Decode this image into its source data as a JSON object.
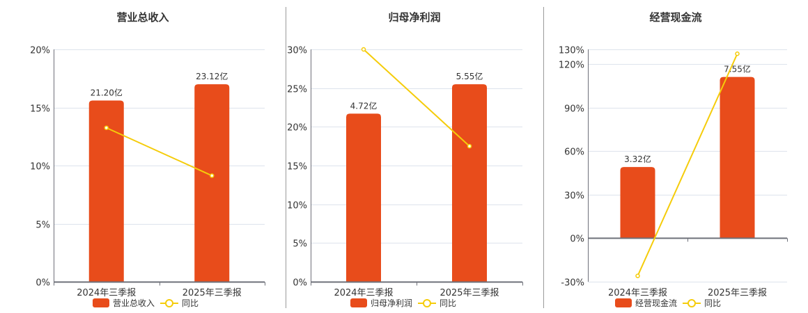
{
  "colors": {
    "bar": "#E84C1B",
    "line": "#F5CC0A",
    "grid": "#DDE3EC",
    "axis": "#6E7079",
    "divider": "#9A9A9A"
  },
  "legend": {
    "line_label": "同比"
  },
  "chart_data": [
    {
      "type": "bar+line",
      "title": "营业总收入",
      "categories": [
        "2024年三季报",
        "2025年三季报"
      ],
      "series": [
        {
          "name": "营业总收入",
          "type": "bar",
          "labels": [
            "21.20亿",
            "23.12亿"
          ],
          "plotted_values_pct": [
            15.6,
            17.0
          ]
        },
        {
          "name": "同比",
          "type": "line",
          "values_pct": [
            13.25,
            9.13
          ]
        }
      ],
      "yaxis": {
        "min": 0,
        "max": 20,
        "ticks": [
          "0%",
          "5%",
          "10%",
          "15%",
          "20%"
        ],
        "tick_values": [
          0,
          5,
          10,
          15,
          20
        ]
      },
      "grid": true,
      "legend_position": "bottom"
    },
    {
      "type": "bar+line",
      "title": "归母净利润",
      "categories": [
        "2024年三季报",
        "2025年三季报"
      ],
      "series": [
        {
          "name": "归母净利润",
          "type": "bar",
          "labels": [
            "4.72亿",
            "5.55亿"
          ],
          "plotted_values_pct": [
            21.7,
            25.5
          ]
        },
        {
          "name": "同比",
          "type": "line",
          "values_pct": [
            30.0,
            17.5
          ]
        }
      ],
      "yaxis": {
        "min": 0,
        "max": 30,
        "ticks": [
          "0%",
          "5%",
          "10%",
          "15%",
          "20%",
          "25%",
          "30%"
        ],
        "tick_values": [
          0,
          5,
          10,
          15,
          20,
          25,
          30
        ]
      },
      "grid": true,
      "legend_position": "bottom"
    },
    {
      "type": "bar+line",
      "title": "经营现金流",
      "categories": [
        "2024年三季报",
        "2025年三季报"
      ],
      "series": [
        {
          "name": "经营现金流",
          "type": "bar",
          "labels": [
            "3.32亿",
            "7.55亿"
          ],
          "plotted_values_pct": [
            49,
            111
          ]
        },
        {
          "name": "同比",
          "type": "line",
          "values_pct": [
            -26,
            127
          ]
        }
      ],
      "yaxis": {
        "min": -30,
        "max": 130,
        "ticks": [
          "-30%",
          "0%",
          "30%",
          "60%",
          "90%",
          "120%",
          "130%"
        ],
        "tick_values": [
          -30,
          0,
          30,
          60,
          90,
          120,
          130
        ]
      },
      "grid": true,
      "legend_position": "bottom"
    }
  ]
}
